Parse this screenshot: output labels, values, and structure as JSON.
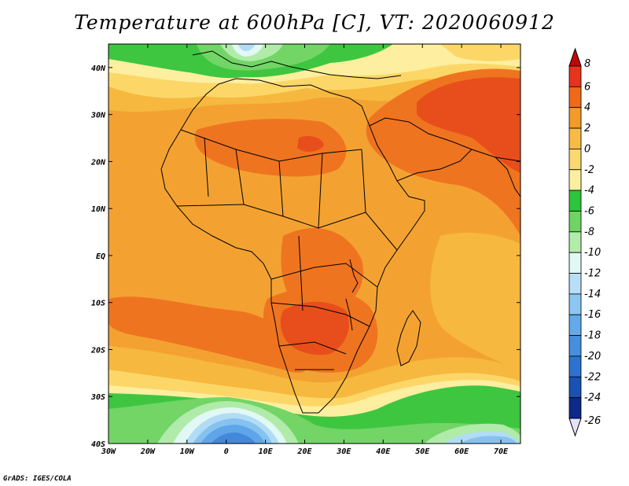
{
  "title": "Temperature at 600hPa [C], VT: 2020060912",
  "credit": "GrADS: IGES/COLA",
  "map": {
    "lon_range": [
      -30,
      75
    ],
    "lat_range": [
      -40,
      45
    ],
    "lon_ticks": [
      {
        "value": -30,
        "label": "30W"
      },
      {
        "value": -20,
        "label": "20W"
      },
      {
        "value": -10,
        "label": "10W"
      },
      {
        "value": 0,
        "label": "0"
      },
      {
        "value": 10,
        "label": "10E"
      },
      {
        "value": 20,
        "label": "20E"
      },
      {
        "value": 30,
        "label": "30E"
      },
      {
        "value": 40,
        "label": "40E"
      },
      {
        "value": 50,
        "label": "50E"
      },
      {
        "value": 60,
        "label": "60E"
      },
      {
        "value": 70,
        "label": "70E"
      }
    ],
    "lat_ticks": [
      {
        "value": 40,
        "label": "40N"
      },
      {
        "value": 30,
        "label": "30N"
      },
      {
        "value": 20,
        "label": "20N"
      },
      {
        "value": 10,
        "label": "10N"
      },
      {
        "value": 0,
        "label": "EQ"
      },
      {
        "value": -10,
        "label": "10S"
      },
      {
        "value": -20,
        "label": "20S"
      },
      {
        "value": -30,
        "label": "30S"
      },
      {
        "value": -40,
        "label": "40S"
      }
    ]
  },
  "colorbar": {
    "levels": [
      {
        "label": "8",
        "color": "#a50a0a"
      },
      {
        "label": "6",
        "color": "#e8341c"
      },
      {
        "label": "4",
        "color": "#ef6a18"
      },
      {
        "label": "2",
        "color": "#f39a28"
      },
      {
        "label": "0",
        "color": "#f7bb45"
      },
      {
        "label": "-2",
        "color": "#fbd870"
      },
      {
        "label": "-4",
        "color": "#fdeea0"
      },
      {
        "label": "-6",
        "color": "#2ec43c"
      },
      {
        "label": "-8",
        "color": "#6ed562"
      },
      {
        "label": "-10",
        "color": "#b2ecaa"
      },
      {
        "label": "-12",
        "color": "#e2f8f4"
      },
      {
        "label": "-14",
        "color": "#b8def8"
      },
      {
        "label": "-16",
        "color": "#8cc6f2"
      },
      {
        "label": "-18",
        "color": "#64aaea"
      },
      {
        "label": "-20",
        "color": "#468ede"
      },
      {
        "label": "-22",
        "color": "#2e72d0"
      },
      {
        "label": "-24",
        "color": "#1a52b4"
      },
      {
        "label": "-26",
        "color": "#0e2a88"
      }
    ],
    "top_color": "#c00808",
    "bottom_color": "#e8e2f8"
  },
  "field": {
    "background": "#f3a232",
    "colors": {
      "warm4": "#ef7420",
      "warm6": "#e84e1c",
      "mid0": "#f6b83e",
      "cool2": "#fcd768",
      "cool4": "#fdeea0",
      "green6": "#3ec640",
      "green8": "#72d566",
      "green10": "#b0ebaa",
      "ice12": "#e2f8f4",
      "blue14": "#b2dcf6",
      "blue16": "#86c2f0",
      "blue18": "#5fa6e8",
      "blue20": "#4488da"
    }
  }
}
